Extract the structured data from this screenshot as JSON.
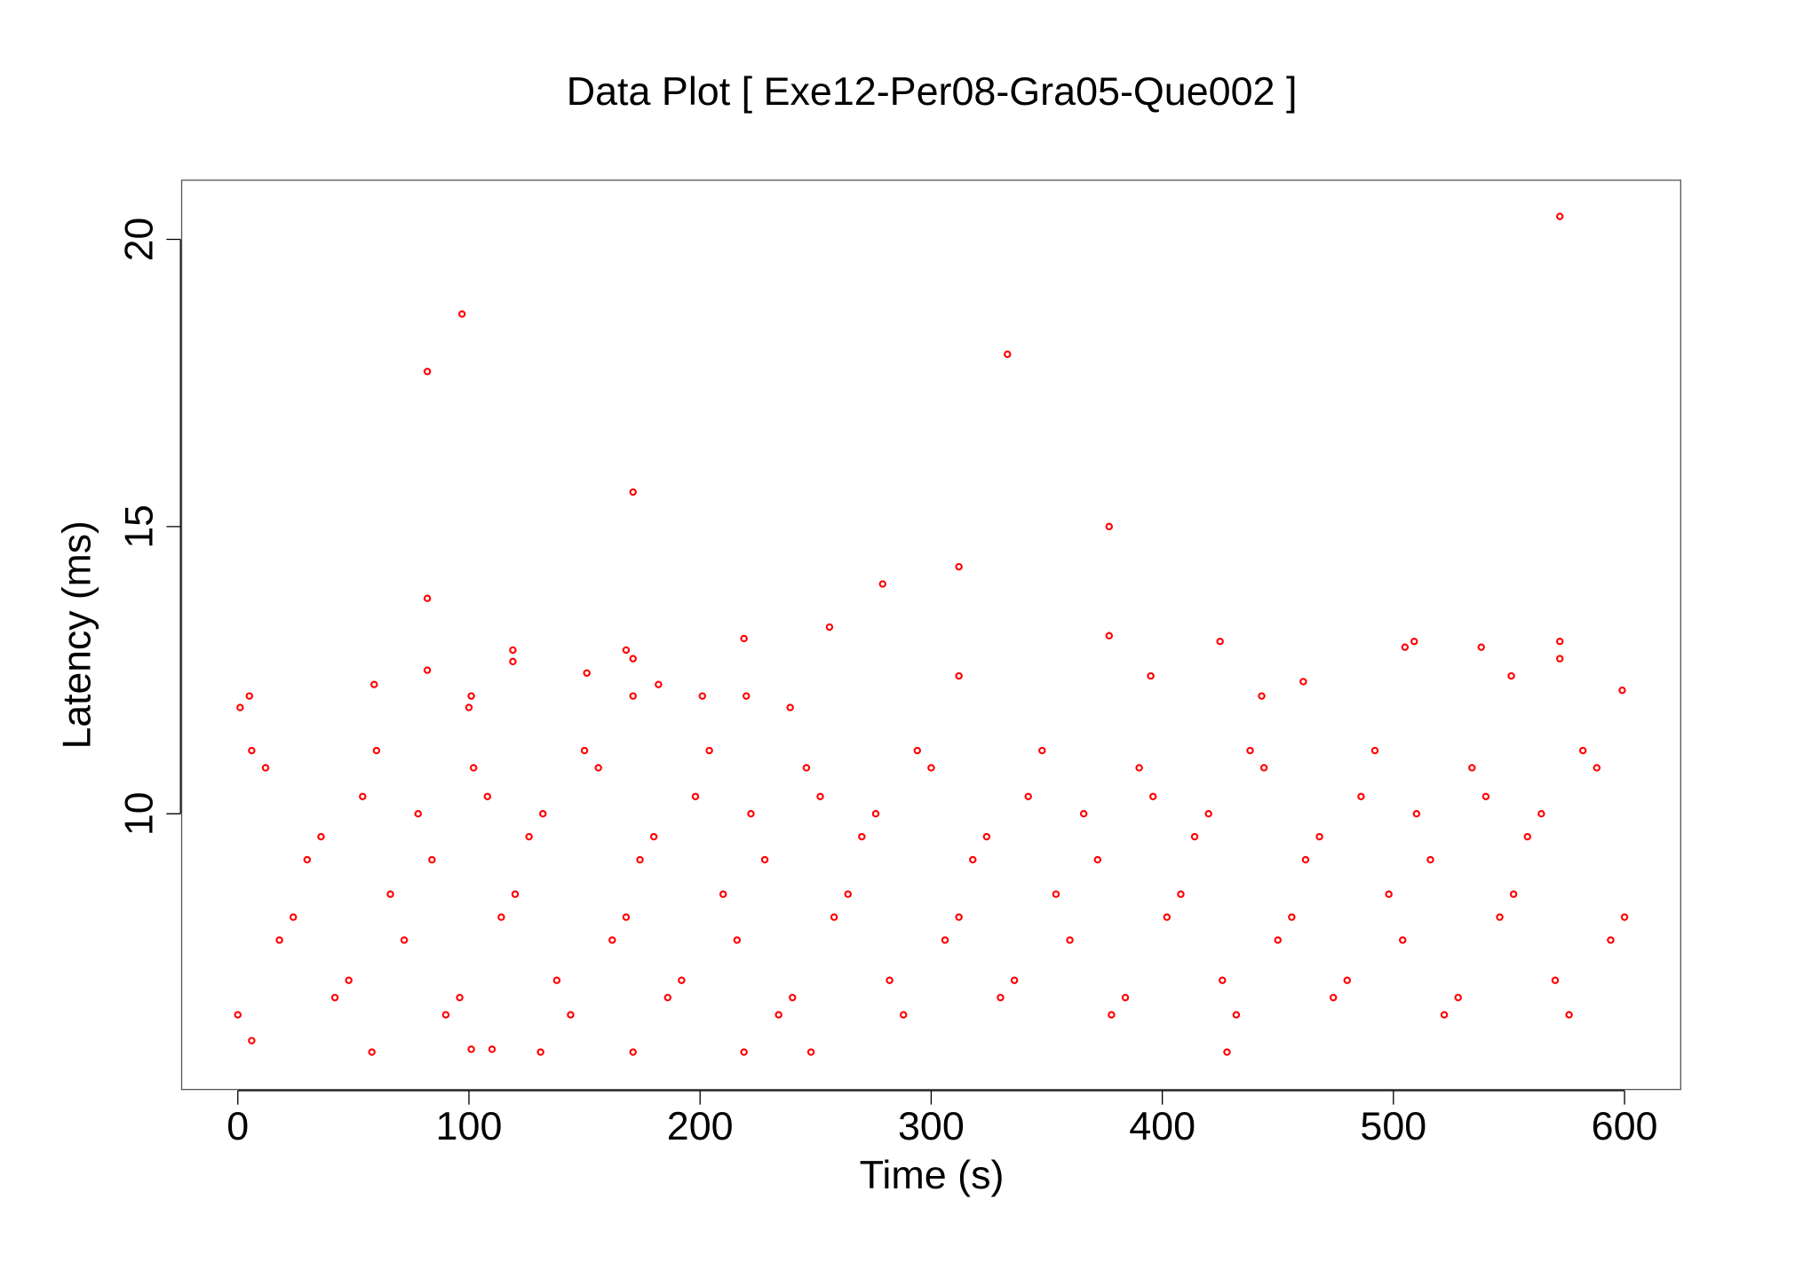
{
  "chart_data": {
    "type": "scatter",
    "title": "Data Plot [ Exe12-Per08-Gra05-Que002 ]",
    "x_label": "Time (s)",
    "y_label": "Latency (ms)",
    "color": "#ff0000",
    "xlim": [
      -24.3,
      624.3
    ],
    "ylim": [
      5.2,
      21.03
    ],
    "xticks": [
      0,
      100,
      200,
      300,
      400,
      500,
      600
    ],
    "yticks": [
      10,
      15,
      20
    ],
    "series": [
      {
        "name": null,
        "color": "#ff0000",
        "x": [
          0,
          6,
          12,
          18,
          24,
          30,
          36,
          42,
          48,
          54,
          60,
          66,
          72,
          78,
          84,
          90,
          96,
          102,
          108,
          114,
          120,
          126,
          132,
          138,
          144,
          150,
          156,
          162,
          168,
          174,
          180,
          186,
          192,
          198,
          204,
          210,
          216,
          222,
          228,
          234,
          240,
          246,
          252,
          258,
          264,
          270,
          276,
          282,
          288,
          294,
          300,
          306,
          312,
          318,
          324,
          330,
          336,
          342,
          348,
          354,
          360,
          366,
          372,
          378,
          384,
          390,
          396,
          402,
          408,
          414,
          420,
          426,
          432,
          438,
          444,
          450,
          456,
          462,
          468,
          474,
          480,
          486,
          492,
          498,
          504,
          510,
          516,
          522,
          528,
          534,
          540,
          546,
          552,
          558,
          564,
          570,
          576,
          582,
          588,
          594,
          600,
          82,
          97,
          82,
          82,
          171,
          333,
          377,
          377,
          312,
          279,
          256,
          219,
          572,
          572,
          572,
          425,
          509,
          505,
          538,
          119,
          119,
          168,
          171,
          312,
          151,
          59,
          182,
          395,
          461,
          599,
          5,
          101,
          171,
          220,
          201,
          443,
          551,
          239,
          1,
          100,
          58,
          131,
          171,
          219,
          248,
          428,
          101,
          110,
          6
        ],
        "values": [
          6.5,
          11.1,
          10.8,
          7.8,
          8.2,
          9.2,
          9.6,
          6.8,
          7.1,
          10.3,
          11.1,
          8.6,
          7.8,
          10.0,
          9.2,
          6.5,
          6.8,
          10.8,
          10.3,
          8.2,
          8.6,
          9.6,
          10.0,
          7.1,
          6.5,
          11.1,
          10.8,
          7.8,
          8.2,
          9.2,
          9.6,
          6.8,
          7.1,
          10.3,
          11.1,
          8.6,
          7.8,
          10.0,
          9.2,
          6.5,
          6.8,
          10.8,
          10.3,
          8.2,
          8.6,
          9.6,
          10.0,
          7.1,
          6.5,
          11.1,
          10.8,
          7.8,
          8.2,
          9.2,
          9.6,
          6.8,
          7.1,
          10.3,
          11.1,
          8.6,
          7.8,
          10.0,
          9.2,
          6.5,
          6.8,
          10.8,
          10.3,
          8.2,
          8.6,
          9.6,
          10.0,
          7.1,
          6.5,
          11.1,
          10.8,
          7.8,
          8.2,
          9.2,
          9.6,
          6.8,
          7.1,
          10.3,
          11.1,
          8.6,
          7.8,
          10.0,
          9.2,
          6.5,
          6.8,
          10.8,
          10.3,
          8.2,
          8.6,
          9.6,
          10.0,
          7.1,
          6.5,
          11.1,
          10.8,
          7.8,
          8.2,
          17.7,
          18.7,
          13.75,
          12.5,
          15.6,
          18.0,
          15.0,
          13.1,
          14.3,
          14.0,
          13.25,
          13.05,
          20.4,
          13.0,
          12.7,
          13.0,
          13.0,
          12.9,
          12.9,
          12.85,
          12.65,
          12.85,
          12.7,
          12.4,
          12.45,
          12.25,
          12.25,
          12.4,
          12.3,
          12.15,
          12.05,
          12.05,
          12.05,
          12.05,
          12.05,
          12.05,
          12.4,
          11.85,
          11.85,
          11.85,
          5.85,
          5.85,
          5.85,
          5.85,
          5.85,
          5.85,
          5.9,
          5.9,
          6.05
        ]
      }
    ]
  }
}
